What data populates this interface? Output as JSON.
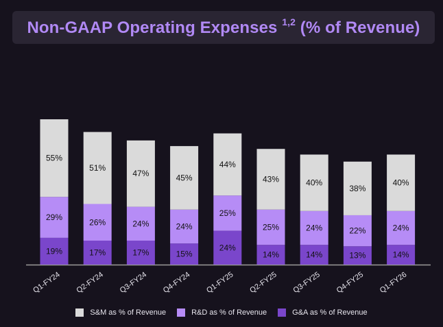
{
  "title": {
    "main": "Non-GAAP Operating Expenses ",
    "superscript": "1,2",
    "suffix": " (% of Revenue)"
  },
  "colors": {
    "background": "#16121d",
    "title_box": "#2a2533",
    "title_text": "#b189f5",
    "sm": "#dadada",
    "rd": "#b68cf6",
    "ga": "#7a46cb",
    "label_text": "#111111",
    "axis": "#9b9b9b"
  },
  "chart_data": {
    "type": "bar",
    "stacked": true,
    "title": "Non-GAAP Operating Expenses 1,2 (% of Revenue)",
    "categories": [
      "Q1-FY24",
      "Q2-FY24",
      "Q3-FY24",
      "Q4-FY24",
      "Q1-FY25",
      "Q2-FY25",
      "Q3-FY25",
      "Q4-FY25",
      "Q1-FY26"
    ],
    "series": [
      {
        "name": "G&A as % of Revenue",
        "key": "ga",
        "values": [
          19,
          17,
          17,
          15,
          24,
          14,
          14,
          13,
          14
        ]
      },
      {
        "name": "R&D as % of Revenue",
        "key": "rd",
        "values": [
          29,
          26,
          24,
          24,
          25,
          25,
          24,
          22,
          24
        ]
      },
      {
        "name": "S&M as % of Revenue",
        "key": "sm",
        "values": [
          55,
          51,
          47,
          45,
          44,
          43,
          40,
          38,
          40
        ]
      }
    ],
    "legend": [
      "S&M as % of Revenue",
      "R&D as % of Revenue",
      "G&A as % of Revenue"
    ],
    "value_suffix": "%",
    "xlabel": "",
    "ylabel": "",
    "ylim": [
      0,
      103
    ],
    "grid": false,
    "legend_position": "bottom"
  }
}
